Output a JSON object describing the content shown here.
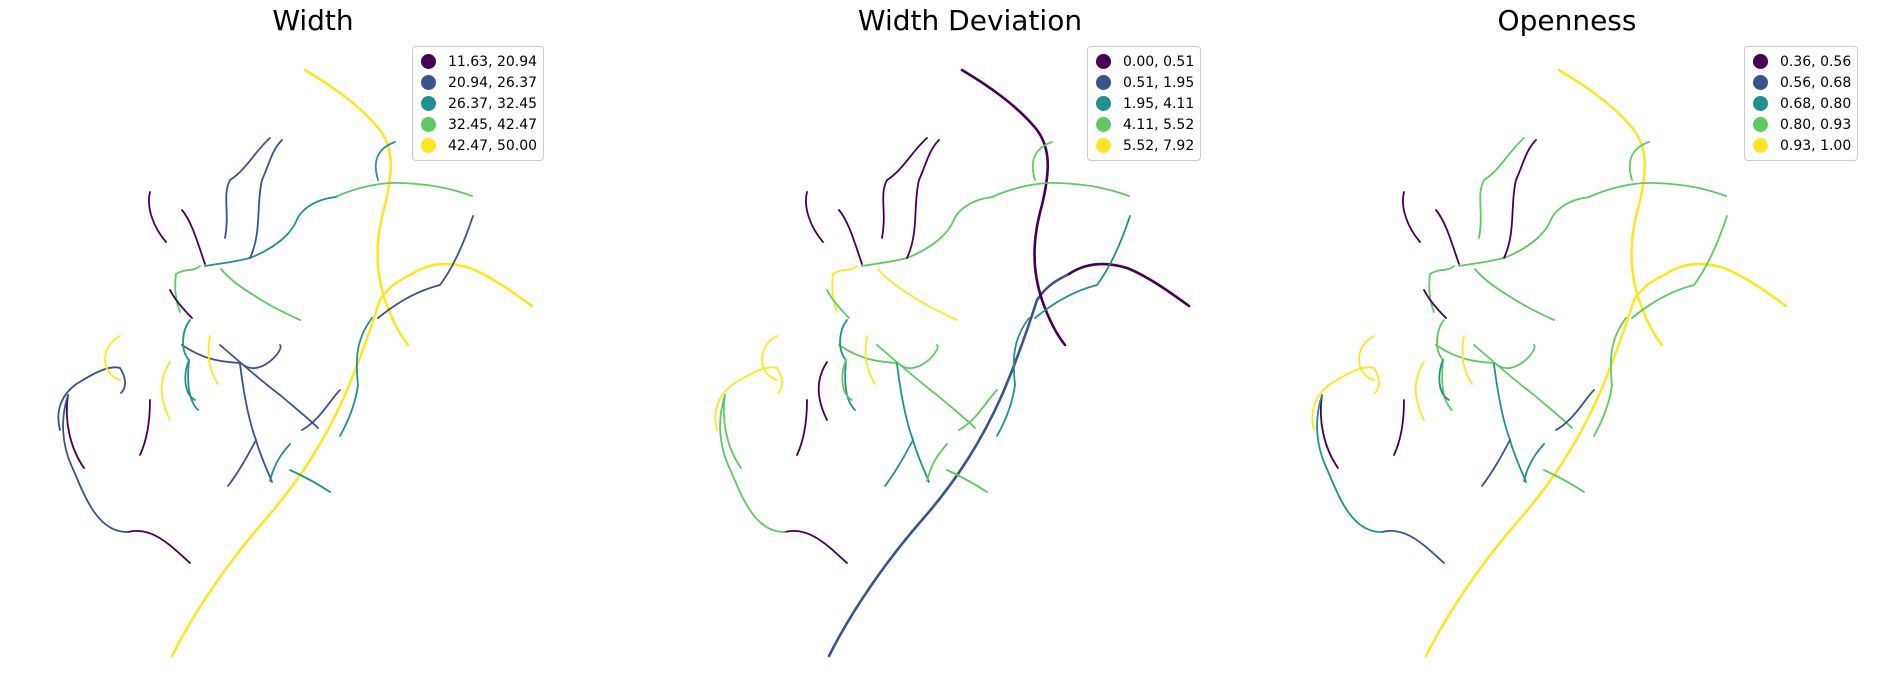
{
  "palette": [
    "#440154",
    "#3b528b",
    "#21918c",
    "#5ec962",
    "#fde725"
  ],
  "panels": [
    {
      "title": "Width",
      "legend": {
        "placement": "top-right",
        "entries": [
          {
            "label": "11.63, 20.94",
            "color": "#440154"
          },
          {
            "label": "20.94, 26.37",
            "color": "#3b528b"
          },
          {
            "label": "26.37, 32.45",
            "color": "#21918c"
          },
          {
            "label": "32.45, 42.47",
            "color": "#5ec962"
          },
          {
            "label": "42.47, 50.00",
            "color": "#fde725"
          }
        ]
      },
      "segment_classes": [
        4,
        4,
        4,
        3,
        2,
        2,
        1,
        1,
        2,
        1,
        1,
        1,
        3,
        0,
        0,
        0,
        0,
        0,
        1,
        1,
        2,
        2,
        1,
        1,
        2,
        3,
        3,
        4,
        0,
        4,
        4,
        1,
        2
      ]
    },
    {
      "title": "Width Deviation",
      "legend": {
        "placement": "top-right",
        "entries": [
          {
            "label": "0.00, 0.51",
            "color": "#440154"
          },
          {
            "label": "0.51, 1.95",
            "color": "#3b528b"
          },
          {
            "label": "1.95, 4.11",
            "color": "#21918c"
          },
          {
            "label": "4.11, 5.52",
            "color": "#5ec962"
          },
          {
            "label": "5.52, 7.92",
            "color": "#fde725"
          }
        ]
      },
      "segment_classes": [
        1,
        0,
        0,
        3,
        3,
        3,
        2,
        0,
        2,
        0,
        3,
        3,
        4,
        0,
        0,
        3,
        3,
        0,
        3,
        4,
        2,
        3,
        2,
        2,
        3,
        4,
        4,
        0,
        0,
        4,
        4,
        3,
        3
      ]
    },
    {
      "title": "Openness",
      "legend": {
        "placement": "top-right",
        "entries": [
          {
            "label": "0.36, 0.56",
            "color": "#440154"
          },
          {
            "label": "0.56, 0.68",
            "color": "#3b528b"
          },
          {
            "label": "0.68, 0.80",
            "color": "#21918c"
          },
          {
            "label": "0.80, 0.93",
            "color": "#5ec962"
          },
          {
            "label": "0.93, 1.00",
            "color": "#fde725"
          }
        ]
      },
      "segment_classes": [
        4,
        4,
        4,
        3,
        3,
        3,
        3,
        0,
        3,
        3,
        3,
        3,
        3,
        0,
        0,
        0,
        0,
        1,
        2,
        4,
        3,
        2,
        2,
        1,
        2,
        3,
        3,
        4,
        0,
        4,
        4,
        1,
        3
      ]
    }
  ]
}
